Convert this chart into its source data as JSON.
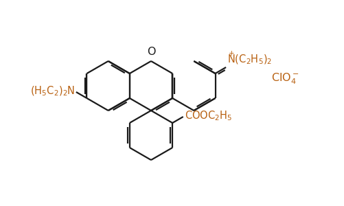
{
  "background_color": "#ffffff",
  "line_color": "#1a1a1a",
  "text_color": "#b86010",
  "figsize": [
    5.01,
    3.0
  ],
  "dpi": 100,
  "lw": 1.6,
  "hr": 36
}
